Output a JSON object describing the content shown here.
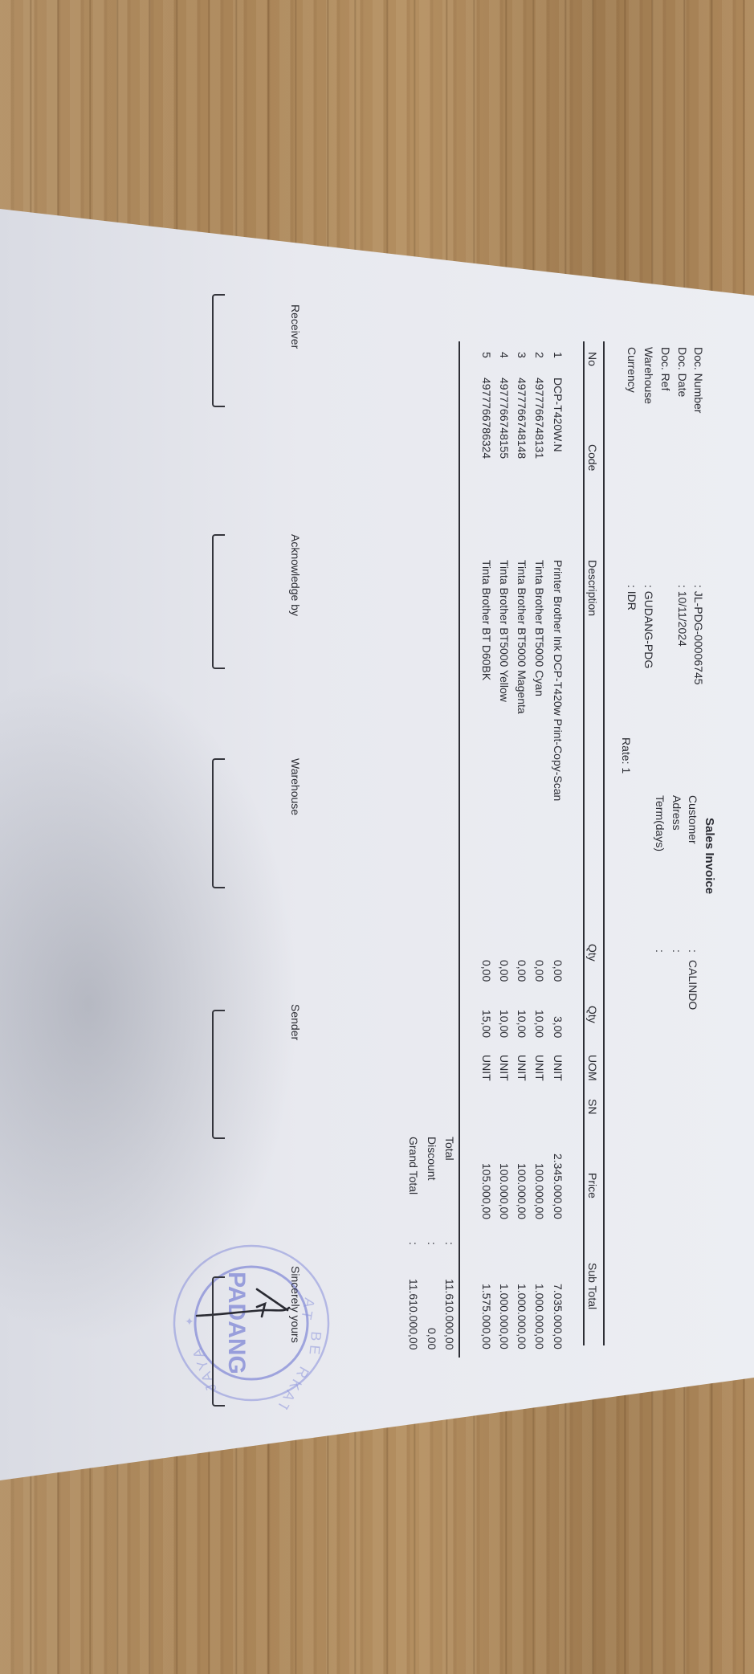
{
  "document": {
    "title": "Sales Invoice",
    "fields": [
      {
        "label": "Doc. Number",
        "value": ": JL-PDG-00006745"
      },
      {
        "label": "Doc. Date",
        "value": ": 10/11/2024"
      },
      {
        "label": "Doc. Ref",
        "value": ""
      },
      {
        "label": "Warehouse",
        "value": ": GUDANG-PDG"
      },
      {
        "label": "Currency",
        "value": ": IDR"
      }
    ],
    "rate": "Rate: 1",
    "customer_fields": [
      {
        "label": "Customer",
        "colon": ":",
        "value": "CALINDO"
      },
      {
        "label": "Adress",
        "colon": ":",
        "value": ""
      },
      {
        "label": "Term(days)",
        "colon": ":",
        "value": ""
      }
    ]
  },
  "table": {
    "headers": [
      "No",
      "Code",
      "Description",
      "Qty",
      "Qty",
      "UOM",
      "SN",
      "Price",
      "Sub Total"
    ],
    "rows": [
      {
        "no": "1",
        "code": "DCP-T420W.N",
        "description": "Printer Brother Ink DCP-T420w Print-Copy-Scan",
        "qty1": "0,00",
        "qty2": "3,00",
        "uom": "UNIT",
        "sn": "",
        "price": "2.345.000,00",
        "subtotal": "7.035.000,00"
      },
      {
        "no": "2",
        "code": "4977766748131",
        "description": "Tinta Brother BT5000 Cyan",
        "qty1": "0,00",
        "qty2": "10,00",
        "uom": "UNIT",
        "sn": "",
        "price": "100.000,00",
        "subtotal": "1.000.000,00"
      },
      {
        "no": "3",
        "code": "4977766748148",
        "description": "Tinta Brother BT5000 Magenta",
        "qty1": "0,00",
        "qty2": "10,00",
        "uom": "UNIT",
        "sn": "",
        "price": "100.000,00",
        "subtotal": "1.000.000,00"
      },
      {
        "no": "4",
        "code": "4977766748155",
        "description": "Tinta Brother BT5000 Yellow",
        "qty1": "0,00",
        "qty2": "10,00",
        "uom": "UNIT",
        "sn": "",
        "price": "100.000,00",
        "subtotal": "1.000.000,00"
      },
      {
        "no": "5",
        "code": "4977766786324",
        "description": "Tinta Brother BT D60BK",
        "qty1": "0,00",
        "qty2": "15,00",
        "uom": "UNIT",
        "sn": "",
        "price": "105.000,00",
        "subtotal": "1.575.000,00"
      }
    ]
  },
  "totals": [
    {
      "label": "Total",
      "colon": ":",
      "value": "11.610.000,00"
    },
    {
      "label": "Discount",
      "colon": ":",
      "value": "0,00"
    },
    {
      "label": "Grand Total",
      "colon": ":",
      "value": "11.610.000,00"
    }
  ],
  "signatures": [
    "Receiver",
    "Acknowledge by",
    "Warehouse",
    "Sender",
    "Sincerely yours"
  ],
  "stamp": {
    "center_text": "PADANG",
    "ring_text": "AT BERKAT JAYA",
    "color": "#7f86d6"
  },
  "colors": {
    "ink": "#2b2c33",
    "paper": "#e8e9ef",
    "wood": "#b08d62"
  }
}
